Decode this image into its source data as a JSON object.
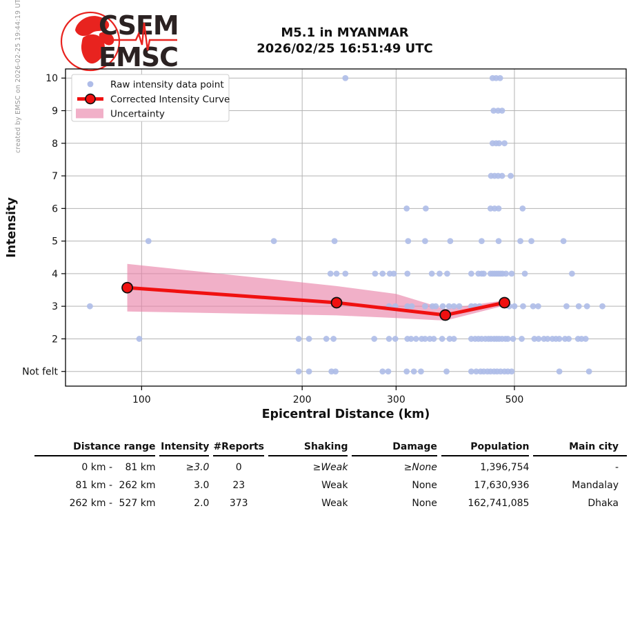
{
  "meta": {
    "created_by": "created by EMSC on 2026-02-25 19:44:19 UTC"
  },
  "header": {
    "logo_top": "CSEM",
    "logo_bottom": "EMSC",
    "title_line1": "M5.1 in MYANMAR",
    "title_line2": "2026/02/25 16:51:49 UTC"
  },
  "chart_data": {
    "type": "scatter",
    "xlabel": "Epicentral Distance (km)",
    "ylabel": "Intensity",
    "x_scale": "log",
    "xlim": [
      72,
      810
    ],
    "ylim": [
      0.55,
      10.28
    ],
    "x_ticks": [
      100,
      200,
      300,
      500
    ],
    "y_tick_values": [
      1,
      2,
      3,
      4,
      5,
      6,
      7,
      8,
      9,
      10
    ],
    "y_tick_labels": [
      "Not felt",
      "2",
      "3",
      "4",
      "5",
      "6",
      "7",
      "8",
      "9",
      "10"
    ],
    "grid": true,
    "legend": [
      "Raw intensity data point",
      "Corrected Intensity Curve",
      "Uncertainty"
    ],
    "legend_position": "upper left",
    "colors": {
      "raw_point": "#aebce8",
      "curve": "#f01010",
      "band": "#e87fa6",
      "grid": "#b3b3b3",
      "frame": "#000000"
    },
    "raw_points": [
      [
        241,
        10
      ],
      [
        455,
        10
      ],
      [
        462,
        10
      ],
      [
        470,
        10
      ],
      [
        457,
        9
      ],
      [
        466,
        9
      ],
      [
        474,
        9
      ],
      [
        455,
        8
      ],
      [
        462,
        8
      ],
      [
        468,
        8
      ],
      [
        479,
        8
      ],
      [
        452,
        7
      ],
      [
        459,
        7
      ],
      [
        466,
        7
      ],
      [
        474,
        7
      ],
      [
        492,
        7
      ],
      [
        314,
        6
      ],
      [
        341,
        6
      ],
      [
        451,
        6
      ],
      [
        459,
        6
      ],
      [
        467,
        6
      ],
      [
        518,
        6
      ],
      [
        103,
        5
      ],
      [
        177,
        5
      ],
      [
        230,
        5
      ],
      [
        316,
        5
      ],
      [
        340,
        5
      ],
      [
        379,
        5
      ],
      [
        434,
        5
      ],
      [
        467,
        5
      ],
      [
        513,
        5
      ],
      [
        538,
        5
      ],
      [
        618,
        5
      ],
      [
        226,
        4
      ],
      [
        232,
        4
      ],
      [
        241,
        4
      ],
      [
        274,
        4
      ],
      [
        283,
        4
      ],
      [
        292,
        4
      ],
      [
        297,
        4
      ],
      [
        315,
        4
      ],
      [
        350,
        4
      ],
      [
        362,
        4
      ],
      [
        374,
        4
      ],
      [
        415,
        4
      ],
      [
        428,
        4
      ],
      [
        434,
        4
      ],
      [
        438,
        4
      ],
      [
        451,
        4
      ],
      [
        455,
        4
      ],
      [
        459,
        4
      ],
      [
        463,
        4
      ],
      [
        467,
        4
      ],
      [
        471,
        4
      ],
      [
        475,
        4
      ],
      [
        482,
        4
      ],
      [
        494,
        4
      ],
      [
        523,
        4
      ],
      [
        641,
        4
      ],
      [
        80,
        3
      ],
      [
        291,
        3
      ],
      [
        299,
        3
      ],
      [
        315,
        3
      ],
      [
        321,
        3
      ],
      [
        340,
        3
      ],
      [
        351,
        3
      ],
      [
        356,
        3
      ],
      [
        367,
        3
      ],
      [
        377,
        3
      ],
      [
        385,
        3
      ],
      [
        394,
        3
      ],
      [
        415,
        3
      ],
      [
        422,
        3
      ],
      [
        430,
        3
      ],
      [
        489,
        3
      ],
      [
        500,
        3
      ],
      [
        519,
        3
      ],
      [
        542,
        3
      ],
      [
        554,
        3
      ],
      [
        626,
        3
      ],
      [
        660,
        3
      ],
      [
        684,
        3
      ],
      [
        731,
        3
      ],
      [
        99,
        2
      ],
      [
        197,
        2
      ],
      [
        206,
        2
      ],
      [
        222,
        2
      ],
      [
        229,
        2
      ],
      [
        273,
        2
      ],
      [
        291,
        2
      ],
      [
        299,
        2
      ],
      [
        315,
        2
      ],
      [
        320,
        2
      ],
      [
        327,
        2
      ],
      [
        335,
        2
      ],
      [
        340,
        2
      ],
      [
        347,
        2
      ],
      [
        353,
        2
      ],
      [
        366,
        2
      ],
      [
        378,
        2
      ],
      [
        385,
        2
      ],
      [
        415,
        2
      ],
      [
        422,
        2
      ],
      [
        428,
        2
      ],
      [
        434,
        2
      ],
      [
        441,
        2
      ],
      [
        447,
        2
      ],
      [
        452,
        2
      ],
      [
        458,
        2
      ],
      [
        463,
        2
      ],
      [
        468,
        2
      ],
      [
        474,
        2
      ],
      [
        481,
        2
      ],
      [
        486,
        2
      ],
      [
        497,
        2
      ],
      [
        516,
        2
      ],
      [
        545,
        2
      ],
      [
        555,
        2
      ],
      [
        568,
        2
      ],
      [
        577,
        2
      ],
      [
        589,
        2
      ],
      [
        598,
        2
      ],
      [
        607,
        2
      ],
      [
        622,
        2
      ],
      [
        632,
        2
      ],
      [
        658,
        2
      ],
      [
        668,
        2
      ],
      [
        680,
        2
      ],
      [
        197,
        1
      ],
      [
        206,
        1
      ],
      [
        227,
        1
      ],
      [
        231,
        1
      ],
      [
        283,
        1
      ],
      [
        290,
        1
      ],
      [
        314,
        1
      ],
      [
        324,
        1
      ],
      [
        334,
        1
      ],
      [
        373,
        1
      ],
      [
        415,
        1
      ],
      [
        424,
        1
      ],
      [
        432,
        1
      ],
      [
        438,
        1
      ],
      [
        445,
        1
      ],
      [
        451,
        1
      ],
      [
        458,
        1
      ],
      [
        464,
        1
      ],
      [
        471,
        1
      ],
      [
        479,
        1
      ],
      [
        486,
        1
      ],
      [
        494,
        1
      ],
      [
        607,
        1
      ],
      [
        690,
        1
      ]
    ],
    "corrected_curve": [
      [
        94,
        3.57
      ],
      [
        232,
        3.11
      ],
      [
        371,
        2.73
      ],
      [
        479,
        3.11
      ]
    ],
    "uncertainty_upper": [
      [
        94,
        4.3
      ],
      [
        232,
        3.62
      ],
      [
        300,
        3.38
      ],
      [
        371,
        2.92
      ],
      [
        479,
        3.18
      ]
    ],
    "uncertainty_lower": [
      [
        94,
        2.84
      ],
      [
        232,
        2.72
      ],
      [
        300,
        2.64
      ],
      [
        371,
        2.56
      ],
      [
        479,
        3.02
      ]
    ]
  },
  "table": {
    "headers": [
      "Distance range",
      "Intensity",
      "#Reports",
      "Shaking",
      "Damage",
      "Population",
      "Main city"
    ],
    "rows": [
      {
        "range_from": "0 km - ",
        "range_to": "81 km",
        "intensity": "≥3.0",
        "reports": "0",
        "shaking": "≥Weak",
        "damage": "≥None",
        "population": "1,396,754",
        "main_city": "-",
        "estimated": true
      },
      {
        "range_from": "81 km - ",
        "range_to": "262 km",
        "intensity": "3.0",
        "reports": "23",
        "shaking": "Weak",
        "damage": "None",
        "population": "17,630,936",
        "main_city": "Mandalay",
        "estimated": false
      },
      {
        "range_from": "262 km - ",
        "range_to": "527 km",
        "intensity": "2.0",
        "reports": "373",
        "shaking": "Weak",
        "damage": "None",
        "population": "162,741,085",
        "main_city": "Dhaka",
        "estimated": false
      }
    ]
  }
}
